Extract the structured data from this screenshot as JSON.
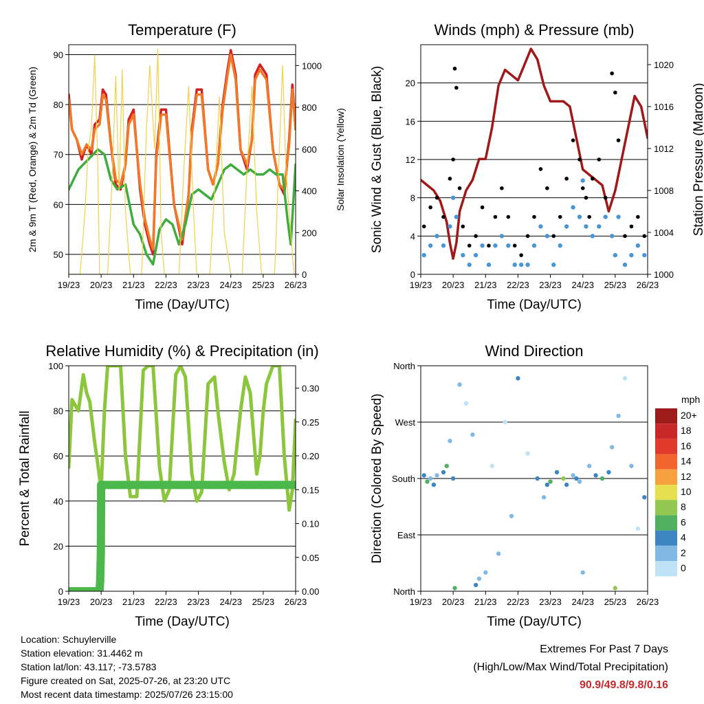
{
  "footer": {
    "location": "Location: Schuylerville",
    "elevation": "Station elevation: 31.4462 m",
    "latlon": "Station lat/lon: 43.117; -73.5783",
    "created": "Figure created on Sat, 2025-07-26, at 23:20 UTC",
    "recent": "Most recent data timestamp: 2025/07/26 23:15:00",
    "extremes_title": "Extremes For Past 7 Days",
    "extremes_subtitle": "(High/Low/Max Wind/Total Precipitation)",
    "extremes_values": "90.9/49.8/9.8/0.16"
  },
  "chart_data": [
    {
      "type": "line",
      "title": "Temperature (F)",
      "xlabel": "Time (Day/UTC)",
      "ylabel": "2m & 9m T (Red, Orange) & 2m Td (Green)",
      "y2label": "Solar Insolation (Yellow)",
      "x_ticks": [
        "19/23",
        "20/23",
        "21/23",
        "22/23",
        "23/23",
        "24/23",
        "25/23",
        "26/23"
      ],
      "xlim": [
        0,
        7
      ],
      "ylim": [
        46,
        92
      ],
      "y_ticks": [
        50,
        60,
        70,
        80,
        90
      ],
      "y2lim": [
        0,
        1100
      ],
      "y2_ticks": [
        0,
        200,
        400,
        600,
        800,
        1000
      ],
      "grid": "horizontal",
      "series": [
        {
          "name": "2m T",
          "color": "#d42020",
          "axis": "left",
          "x": [
            0,
            0.1,
            0.25,
            0.4,
            0.55,
            0.7,
            0.8,
            0.95,
            1.05,
            1.15,
            1.3,
            1.45,
            1.6,
            1.75,
            1.85,
            2.0,
            2.2,
            2.35,
            2.5,
            2.6,
            2.7,
            2.85,
            3.0,
            3.25,
            3.5,
            3.7,
            3.8,
            3.95,
            4.1,
            4.3,
            4.45,
            4.6,
            4.75,
            4.9,
            5.0,
            5.15,
            5.3,
            5.5,
            5.65,
            5.75,
            5.9,
            6.1,
            6.3,
            6.5,
            6.65,
            6.8,
            6.9,
            7.0
          ],
          "y": [
            82,
            75,
            73,
            69,
            72,
            70,
            76,
            77,
            83,
            82,
            72,
            64,
            63,
            68,
            77,
            79,
            63,
            56,
            52,
            50,
            70,
            79,
            79,
            60,
            52,
            62,
            75,
            83,
            83,
            67,
            64,
            68,
            80,
            87,
            90.9,
            86,
            71,
            67,
            73,
            86,
            88,
            86,
            71,
            64,
            62,
            73,
            84,
            75
          ]
        },
        {
          "name": "9m T",
          "color": "#f07a28",
          "axis": "left",
          "x": [
            0,
            0.1,
            0.25,
            0.4,
            0.55,
            0.7,
            0.8,
            0.95,
            1.05,
            1.15,
            1.3,
            1.45,
            1.6,
            1.75,
            1.85,
            2.0,
            2.2,
            2.35,
            2.5,
            2.6,
            2.7,
            2.85,
            3.0,
            3.25,
            3.5,
            3.7,
            3.8,
            3.95,
            4.1,
            4.3,
            4.45,
            4.6,
            4.75,
            4.9,
            5.0,
            5.15,
            5.3,
            5.5,
            5.65,
            5.75,
            5.9,
            6.1,
            6.3,
            6.5,
            6.65,
            6.8,
            6.9,
            7.0
          ],
          "y": [
            81,
            75,
            73,
            70,
            72,
            71,
            75,
            76,
            82,
            81,
            72,
            65,
            64,
            68,
            76,
            78,
            64,
            57,
            53,
            51,
            69,
            78,
            78,
            60,
            53,
            62,
            74,
            82,
            82,
            67,
            64,
            68,
            79,
            86,
            90,
            85,
            71,
            68,
            73,
            85,
            87,
            85,
            71,
            64,
            63,
            72,
            83,
            75
          ]
        },
        {
          "name": "2m Td",
          "color": "#40ac40",
          "axis": "left",
          "x": [
            0,
            0.3,
            0.6,
            0.9,
            1.1,
            1.3,
            1.5,
            1.75,
            2.0,
            2.2,
            2.4,
            2.6,
            2.8,
            3.0,
            3.2,
            3.4,
            3.6,
            3.8,
            4.0,
            4.2,
            4.4,
            4.6,
            4.8,
            5.0,
            5.2,
            5.4,
            5.6,
            5.8,
            6.0,
            6.2,
            6.4,
            6.6,
            6.75,
            6.85,
            7.0
          ],
          "y": [
            63,
            67,
            69,
            71,
            70,
            65,
            63,
            64,
            56,
            54,
            50,
            48,
            55,
            57,
            56,
            52,
            56,
            62,
            63,
            62,
            61,
            64,
            67,
            68,
            67,
            66,
            67,
            66,
            66,
            67,
            66,
            66,
            57,
            52,
            68
          ]
        },
        {
          "name": "Solar Insolation",
          "color": "#f2d04a",
          "axis": "right",
          "x": [
            0,
            0.35,
            0.5,
            0.6,
            0.7,
            0.8,
            0.9,
            0.95,
            1.1,
            1.2,
            1.35,
            1.45,
            1.55,
            1.65,
            1.75,
            1.9,
            2.1,
            2.25,
            2.4,
            2.5,
            2.65,
            2.75,
            2.85,
            2.95,
            3.2,
            3.4,
            3.55,
            3.7,
            3.85,
            3.95,
            4.2,
            4.35,
            4.5,
            4.65,
            4.8,
            5.0,
            5.2,
            5.35,
            5.5,
            5.65,
            5.8,
            5.95,
            6.2,
            6.35,
            6.5,
            6.6,
            6.7,
            6.85,
            6.95
          ],
          "y": [
            0,
            0,
            300,
            600,
            700,
            1050,
            500,
            0,
            0,
            0,
            500,
            950,
            400,
            980,
            300,
            0,
            0,
            0,
            700,
            1000,
            600,
            1080,
            200,
            0,
            0,
            0,
            500,
            900,
            300,
            0,
            0,
            0,
            400,
            850,
            200,
            0,
            0,
            0,
            500,
            900,
            300,
            0,
            0,
            0,
            600,
            1000,
            500,
            200,
            0
          ]
        }
      ]
    },
    {
      "type": "scatter",
      "title": "Winds (mph) & Pressure (mb)",
      "xlabel": "Time (Day/UTC)",
      "ylabel": "Sonic Wind & Gust (Blue, Black)",
      "y2label": "Station Pressure (Maroon)",
      "x_ticks": [
        "19/23",
        "20/23",
        "21/23",
        "22/23",
        "23/23",
        "24/23",
        "25/23",
        "26/23"
      ],
      "xlim": [
        0,
        7
      ],
      "ylim": [
        0,
        24
      ],
      "y_ticks": [
        0,
        4,
        8,
        12,
        16,
        20
      ],
      "y2lim": [
        1000,
        1021.9
      ],
      "y2_ticks": [
        1000,
        1004,
        1008,
        1012,
        1016,
        1020
      ],
      "grid": "horizontal",
      "series": [
        {
          "name": "Station Pressure",
          "color": "#a01818",
          "axis": "right",
          "x": [
            0,
            0.2,
            0.4,
            0.6,
            0.8,
            0.9,
            1.0,
            1.1,
            1.2,
            1.4,
            1.6,
            1.8,
            2.0,
            2.2,
            2.4,
            2.6,
            2.8,
            3.0,
            3.2,
            3.4,
            3.6,
            3.8,
            4.0,
            4.2,
            4.4,
            4.6,
            4.8,
            5.0,
            5.2,
            5.4,
            5.6,
            5.8,
            6.0,
            6.2,
            6.4,
            6.6,
            6.8,
            7.0
          ],
          "y": [
            1009,
            1008.5,
            1008,
            1007,
            1005,
            1003,
            1001.5,
            1003,
            1006,
            1008,
            1009,
            1011,
            1011,
            1014,
            1018,
            1019.5,
            1019,
            1018.5,
            1020,
            1021.5,
            1020.5,
            1018,
            1016.5,
            1016.5,
            1016.5,
            1016,
            1013,
            1010,
            1009.5,
            1009,
            1008.5,
            1006,
            1008,
            1011,
            1014,
            1017,
            1016,
            1013
          ]
        },
        {
          "name": "Gust",
          "color": "#000000",
          "axis": "left",
          "x": [
            0.1,
            0.3,
            0.5,
            0.7,
            0.9,
            1.0,
            1.05,
            1.1,
            1.2,
            1.3,
            1.5,
            1.7,
            1.9,
            2.1,
            2.3,
            2.5,
            2.7,
            2.9,
            3.1,
            3.3,
            3.5,
            3.7,
            3.9,
            4.1,
            4.3,
            4.5,
            4.7,
            4.9,
            5.0,
            5.1,
            5.2,
            5.3,
            5.5,
            5.7,
            5.9,
            6.0,
            6.1,
            6.3,
            6.5,
            6.7,
            6.9
          ],
          "y": [
            5,
            7,
            8,
            6,
            10,
            12,
            21.5,
            19.5,
            9,
            5,
            3,
            4,
            7,
            3,
            6,
            9,
            6,
            3,
            2,
            4,
            6,
            11,
            9,
            4,
            6,
            10,
            14,
            12,
            9,
            8,
            6,
            10,
            12,
            8,
            21,
            19,
            14,
            4,
            5,
            6,
            4
          ]
        },
        {
          "name": "Sonic Wind",
          "color": "#4a96d4",
          "axis": "left",
          "x": [
            0.1,
            0.3,
            0.5,
            0.7,
            0.9,
            1.0,
            1.1,
            1.3,
            1.5,
            1.7,
            1.9,
            2.1,
            2.3,
            2.5,
            2.7,
            2.9,
            3.1,
            3.3,
            3.5,
            3.7,
            3.9,
            4.1,
            4.3,
            4.5,
            4.7,
            4.9,
            5.0,
            5.1,
            5.3,
            5.5,
            5.7,
            5.9,
            6.0,
            6.1,
            6.3,
            6.5,
            6.7,
            6.9
          ],
          "y": [
            2,
            3,
            4,
            3,
            5,
            8,
            6,
            2,
            1,
            2,
            3,
            1,
            3,
            4,
            3,
            1,
            1,
            1,
            3,
            5,
            4,
            1,
            3,
            5,
            7,
            6,
            9.8,
            5,
            4,
            5,
            6,
            4,
            2,
            6,
            1,
            2,
            3,
            2
          ]
        }
      ]
    },
    {
      "type": "line",
      "title": "Relative Humidity (%) & Precipitation (in)",
      "xlabel": "Time (Day/UTC)",
      "ylabel": "Percent & Total Rainfall",
      "x_ticks": [
        "19/23",
        "20/23",
        "21/23",
        "22/23",
        "23/23",
        "24/23",
        "25/23",
        "26/23"
      ],
      "xlim": [
        0,
        7
      ],
      "ylim": [
        0,
        100
      ],
      "y_ticks": [
        0,
        20,
        40,
        60,
        80,
        100
      ],
      "y2lim": [
        0,
        0.333
      ],
      "y2_ticks": [
        "0.00",
        "0.05",
        "0.10",
        "0.15",
        "0.20",
        "0.25",
        "0.30"
      ],
      "grid": "horizontal",
      "series": [
        {
          "name": "Relative Humidity",
          "color": "#8cc63c",
          "axis": "left",
          "x": [
            0,
            0.1,
            0.3,
            0.45,
            0.55,
            0.65,
            0.8,
            0.9,
            1.0,
            1.1,
            1.2,
            1.4,
            1.6,
            1.75,
            1.9,
            2.1,
            2.3,
            2.45,
            2.6,
            2.8,
            2.95,
            3.1,
            3.3,
            3.45,
            3.6,
            3.8,
            3.95,
            4.1,
            4.3,
            4.5,
            4.6,
            4.8,
            4.95,
            5.1,
            5.3,
            5.45,
            5.6,
            5.8,
            5.9,
            6.0,
            6.1,
            6.3,
            6.5,
            6.65,
            6.8,
            6.9,
            7.0
          ],
          "y": [
            55,
            85,
            80,
            96,
            88,
            84,
            66,
            56,
            45,
            80,
            100,
            100,
            100,
            60,
            42,
            42,
            98,
            100,
            100,
            55,
            40,
            45,
            96,
            100,
            95,
            52,
            40,
            44,
            92,
            95,
            80,
            57,
            45,
            52,
            80,
            95,
            88,
            52,
            60,
            80,
            92,
            100,
            100,
            60,
            36,
            45,
            76
          ]
        },
        {
          "name": "Total Precipitation",
          "color": "#4cb84c",
          "axis": "right",
          "x": [
            0,
            0.2,
            0.4,
            0.6,
            0.8,
            0.95,
            0.97,
            0.99,
            1.0,
            1.5,
            2.0,
            2.5,
            3.0,
            3.5,
            4.0,
            4.5,
            5.0,
            5.5,
            6.0,
            6.5,
            7.0
          ],
          "y": [
            0,
            0,
            0,
            0,
            0,
            0,
            0.015,
            0.057,
            0.157,
            0.157,
            0.157,
            0.157,
            0.157,
            0.157,
            0.157,
            0.157,
            0.157,
            0.157,
            0.157,
            0.157,
            0.157
          ]
        }
      ]
    },
    {
      "type": "scatter",
      "title": "Wind Direction",
      "xlabel": "Time (Day/UTC)",
      "ylabel": "Direction (Colored By Speed)",
      "x_ticks": [
        "19/23",
        "20/23",
        "21/23",
        "22/23",
        "23/23",
        "24/23",
        "25/23",
        "26/23"
      ],
      "xlim": [
        0,
        7
      ],
      "ylim": [
        0,
        360
      ],
      "y_ticks": [
        "North",
        "East",
        "South",
        "West",
        "North"
      ],
      "grid": "horizontal",
      "legend_title": "mph",
      "legend": [
        "20+",
        "18",
        "16",
        "14",
        "12",
        "10",
        "8",
        "6",
        "4",
        "2",
        "0"
      ],
      "legend_colors": [
        "#9e1b1b",
        "#c82828",
        "#e03a2c",
        "#f0662c",
        "#f6a040",
        "#e6e050",
        "#92c850",
        "#50b060",
        "#3c86c4",
        "#82b8e4",
        "#bee2f6"
      ],
      "series": [
        {
          "name": "Direction",
          "axis": "left",
          "x": [
            0.1,
            0.2,
            0.3,
            0.4,
            0.5,
            0.7,
            0.8,
            0.9,
            1.0,
            1.05,
            1.2,
            1.4,
            1.6,
            1.7,
            1.8,
            2.0,
            2.2,
            2.4,
            2.6,
            2.8,
            3.0,
            3.3,
            3.6,
            3.8,
            3.9,
            4.0,
            4.2,
            4.4,
            4.5,
            4.7,
            4.8,
            4.9,
            5.0,
            5.2,
            5.4,
            5.6,
            5.8,
            5.9,
            6.0,
            6.1,
            6.3,
            6.5,
            6.7,
            6.9
          ],
          "y": [
            185,
            175,
            180,
            170,
            185,
            190,
            200,
            240,
            180,
            5,
            330,
            300,
            250,
            10,
            20,
            30,
            200,
            60,
            270,
            120,
            340,
            220,
            180,
            150,
            170,
            175,
            190,
            180,
            170,
            185,
            180,
            175,
            30,
            200,
            185,
            180,
            190,
            230,
            5,
            280,
            340,
            200,
            100,
            150
          ],
          "speed": [
            4,
            6,
            3,
            4,
            2,
            4,
            6,
            3,
            4,
            6,
            2,
            1,
            2,
            4,
            3,
            3,
            1,
            2,
            1,
            2,
            4,
            1,
            4,
            3,
            4,
            6,
            4,
            8,
            4,
            3,
            4,
            3,
            3,
            2,
            4,
            6,
            4,
            3,
            8,
            2,
            1,
            2,
            1,
            4
          ]
        }
      ]
    }
  ]
}
